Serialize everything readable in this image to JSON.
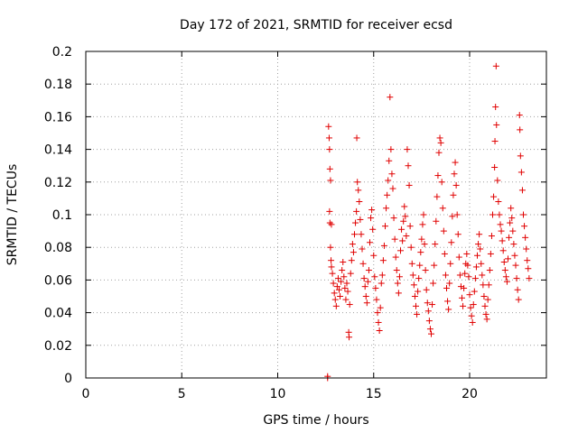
{
  "chart_data": {
    "type": "scatter",
    "title": "Day 172 of 2021, SRMTID for receiver ecsd",
    "xlabel": "GPS time / hours",
    "ylabel": "SRMTID / TECUs",
    "xlim": [
      0,
      24
    ],
    "ylim": [
      0,
      0.2
    ],
    "x_ticks": [
      "0",
      "5",
      "10",
      "15",
      "20"
    ],
    "x_tick_values": [
      0,
      5,
      10,
      15,
      20
    ],
    "y_ticks": [
      "0",
      "0.02",
      "0.04",
      "0.06",
      "0.08",
      "0.1",
      "0.12",
      "0.14",
      "0.16",
      "0.18",
      "0.2"
    ],
    "y_tick_values": [
      0,
      0.02,
      0.04,
      0.06,
      0.08,
      0.1,
      0.12,
      0.14,
      0.16,
      0.18,
      0.2
    ],
    "grid": true,
    "marker": "+",
    "color": "#e00000",
    "series": [
      {
        "name": "SRMTID",
        "points": [
          [
            12.6,
            0.0
          ],
          [
            12.6,
            0.001
          ],
          [
            12.65,
            0.154
          ],
          [
            12.68,
            0.147
          ],
          [
            12.7,
            0.14
          ],
          [
            12.72,
            0.128
          ],
          [
            12.75,
            0.121
          ],
          [
            12.7,
            0.102
          ],
          [
            12.72,
            0.095
          ],
          [
            12.8,
            0.094
          ],
          [
            12.75,
            0.08
          ],
          [
            12.78,
            0.072
          ],
          [
            12.8,
            0.068
          ],
          [
            12.85,
            0.064
          ],
          [
            12.9,
            0.058
          ],
          [
            12.95,
            0.052
          ],
          [
            13.0,
            0.048
          ],
          [
            13.05,
            0.044
          ],
          [
            13.1,
            0.056
          ],
          [
            13.15,
            0.061
          ],
          [
            13.2,
            0.054
          ],
          [
            13.25,
            0.05
          ],
          [
            13.3,
            0.059
          ],
          [
            13.35,
            0.066
          ],
          [
            13.4,
            0.071
          ],
          [
            13.45,
            0.062
          ],
          [
            13.5,
            0.055
          ],
          [
            13.55,
            0.048
          ],
          [
            13.6,
            0.058
          ],
          [
            13.65,
            0.053
          ],
          [
            13.7,
            0.028
          ],
          [
            13.72,
            0.025
          ],
          [
            13.75,
            0.045
          ],
          [
            13.8,
            0.064
          ],
          [
            13.85,
            0.072
          ],
          [
            13.9,
            0.082
          ],
          [
            13.95,
            0.077
          ],
          [
            14.0,
            0.088
          ],
          [
            14.05,
            0.095
          ],
          [
            14.1,
            0.102
          ],
          [
            14.12,
            0.147
          ],
          [
            14.15,
            0.12
          ],
          [
            14.2,
            0.115
          ],
          [
            14.25,
            0.108
          ],
          [
            14.3,
            0.097
          ],
          [
            14.35,
            0.088
          ],
          [
            14.4,
            0.079
          ],
          [
            14.45,
            0.07
          ],
          [
            14.5,
            0.061
          ],
          [
            14.55,
            0.056
          ],
          [
            14.6,
            0.05
          ],
          [
            14.65,
            0.046
          ],
          [
            14.7,
            0.059
          ],
          [
            14.75,
            0.066
          ],
          [
            14.8,
            0.083
          ],
          [
            14.85,
            0.098
          ],
          [
            14.9,
            0.103
          ],
          [
            14.95,
            0.091
          ],
          [
            15.0,
            0.075
          ],
          [
            15.05,
            0.062
          ],
          [
            15.1,
            0.055
          ],
          [
            15.15,
            0.048
          ],
          [
            15.2,
            0.04
          ],
          [
            15.25,
            0.034
          ],
          [
            15.3,
            0.029
          ],
          [
            15.35,
            0.043
          ],
          [
            15.4,
            0.058
          ],
          [
            15.45,
            0.063
          ],
          [
            15.5,
            0.072
          ],
          [
            15.55,
            0.081
          ],
          [
            15.6,
            0.093
          ],
          [
            15.65,
            0.104
          ],
          [
            15.7,
            0.112
          ],
          [
            15.75,
            0.121
          ],
          [
            15.8,
            0.133
          ],
          [
            15.85,
            0.172
          ],
          [
            15.9,
            0.14
          ],
          [
            15.95,
            0.125
          ],
          [
            16.0,
            0.116
          ],
          [
            16.05,
            0.098
          ],
          [
            16.1,
            0.085
          ],
          [
            16.15,
            0.074
          ],
          [
            16.2,
            0.066
          ],
          [
            16.25,
            0.058
          ],
          [
            16.3,
            0.052
          ],
          [
            16.35,
            0.062
          ],
          [
            16.4,
            0.078
          ],
          [
            16.45,
            0.091
          ],
          [
            16.5,
            0.084
          ],
          [
            16.55,
            0.096
          ],
          [
            16.6,
            0.105
          ],
          [
            16.65,
            0.099
          ],
          [
            16.7,
            0.087
          ],
          [
            16.75,
            0.14
          ],
          [
            16.8,
            0.13
          ],
          [
            16.85,
            0.118
          ],
          [
            16.9,
            0.093
          ],
          [
            16.95,
            0.08
          ],
          [
            17.0,
            0.07
          ],
          [
            17.05,
            0.063
          ],
          [
            17.1,
            0.057
          ],
          [
            17.15,
            0.05
          ],
          [
            17.2,
            0.044
          ],
          [
            17.25,
            0.039
          ],
          [
            17.3,
            0.053
          ],
          [
            17.35,
            0.061
          ],
          [
            17.4,
            0.069
          ],
          [
            17.45,
            0.077
          ],
          [
            17.5,
            0.085
          ],
          [
            17.55,
            0.094
          ],
          [
            17.6,
            0.1
          ],
          [
            17.65,
            0.082
          ],
          [
            17.7,
            0.066
          ],
          [
            17.75,
            0.054
          ],
          [
            17.8,
            0.046
          ],
          [
            17.85,
            0.041
          ],
          [
            17.9,
            0.035
          ],
          [
            17.95,
            0.03
          ],
          [
            18.0,
            0.027
          ],
          [
            18.05,
            0.045
          ],
          [
            18.1,
            0.058
          ],
          [
            18.15,
            0.069
          ],
          [
            18.2,
            0.082
          ],
          [
            18.25,
            0.096
          ],
          [
            18.3,
            0.111
          ],
          [
            18.35,
            0.124
          ],
          [
            18.4,
            0.138
          ],
          [
            18.45,
            0.147
          ],
          [
            18.5,
            0.144
          ],
          [
            18.55,
            0.12
          ],
          [
            18.6,
            0.104
          ],
          [
            18.65,
            0.09
          ],
          [
            18.7,
            0.076
          ],
          [
            18.75,
            0.063
          ],
          [
            18.8,
            0.055
          ],
          [
            18.85,
            0.047
          ],
          [
            18.9,
            0.042
          ],
          [
            18.95,
            0.058
          ],
          [
            19.0,
            0.07
          ],
          [
            19.05,
            0.083
          ],
          [
            19.1,
            0.099
          ],
          [
            19.15,
            0.112
          ],
          [
            19.2,
            0.125
          ],
          [
            19.25,
            0.132
          ],
          [
            19.3,
            0.118
          ],
          [
            19.35,
            0.1
          ],
          [
            19.4,
            0.088
          ],
          [
            19.45,
            0.074
          ],
          [
            19.5,
            0.063
          ],
          [
            19.55,
            0.056
          ],
          [
            19.6,
            0.049
          ],
          [
            19.65,
            0.044
          ],
          [
            19.7,
            0.055
          ],
          [
            19.75,
            0.064
          ],
          [
            19.8,
            0.07
          ],
          [
            19.85,
            0.076
          ],
          [
            19.9,
            0.069
          ],
          [
            19.95,
            0.062
          ],
          [
            20.0,
            0.051
          ],
          [
            20.05,
            0.043
          ],
          [
            20.1,
            0.038
          ],
          [
            20.15,
            0.034
          ],
          [
            20.2,
            0.045
          ],
          [
            20.25,
            0.053
          ],
          [
            20.3,
            0.061
          ],
          [
            20.35,
            0.068
          ],
          [
            20.4,
            0.075
          ],
          [
            20.45,
            0.082
          ],
          [
            20.5,
            0.088
          ],
          [
            20.55,
            0.079
          ],
          [
            20.6,
            0.07
          ],
          [
            20.65,
            0.063
          ],
          [
            20.7,
            0.057
          ],
          [
            20.75,
            0.05
          ],
          [
            20.8,
            0.044
          ],
          [
            20.85,
            0.039
          ],
          [
            20.9,
            0.036
          ],
          [
            20.95,
            0.048
          ],
          [
            21.0,
            0.057
          ],
          [
            21.05,
            0.066
          ],
          [
            21.1,
            0.076
          ],
          [
            21.15,
            0.087
          ],
          [
            21.2,
            0.1
          ],
          [
            21.25,
            0.111
          ],
          [
            21.3,
            0.129
          ],
          [
            21.32,
            0.145
          ],
          [
            21.35,
            0.166
          ],
          [
            21.38,
            0.191
          ],
          [
            21.4,
            0.155
          ],
          [
            21.45,
            0.121
          ],
          [
            21.5,
            0.108
          ],
          [
            21.55,
            0.1
          ],
          [
            21.6,
            0.094
          ],
          [
            21.65,
            0.09
          ],
          [
            21.7,
            0.084
          ],
          [
            21.75,
            0.078
          ],
          [
            21.8,
            0.071
          ],
          [
            21.85,
            0.066
          ],
          [
            21.9,
            0.062
          ],
          [
            21.95,
            0.059
          ],
          [
            22.0,
            0.073
          ],
          [
            22.05,
            0.086
          ],
          [
            22.1,
            0.095
          ],
          [
            22.15,
            0.104
          ],
          [
            22.2,
            0.098
          ],
          [
            22.25,
            0.09
          ],
          [
            22.3,
            0.082
          ],
          [
            22.35,
            0.075
          ],
          [
            22.4,
            0.069
          ],
          [
            22.45,
            0.061
          ],
          [
            22.5,
            0.054
          ],
          [
            22.55,
            0.048
          ],
          [
            22.6,
            0.161
          ],
          [
            22.62,
            0.152
          ],
          [
            22.65,
            0.136
          ],
          [
            22.7,
            0.126
          ],
          [
            22.75,
            0.115
          ],
          [
            22.8,
            0.1
          ],
          [
            22.85,
            0.093
          ],
          [
            22.9,
            0.086
          ],
          [
            22.95,
            0.079
          ],
          [
            23.0,
            0.072
          ],
          [
            23.05,
            0.067
          ],
          [
            23.1,
            0.061
          ]
        ]
      }
    ]
  }
}
